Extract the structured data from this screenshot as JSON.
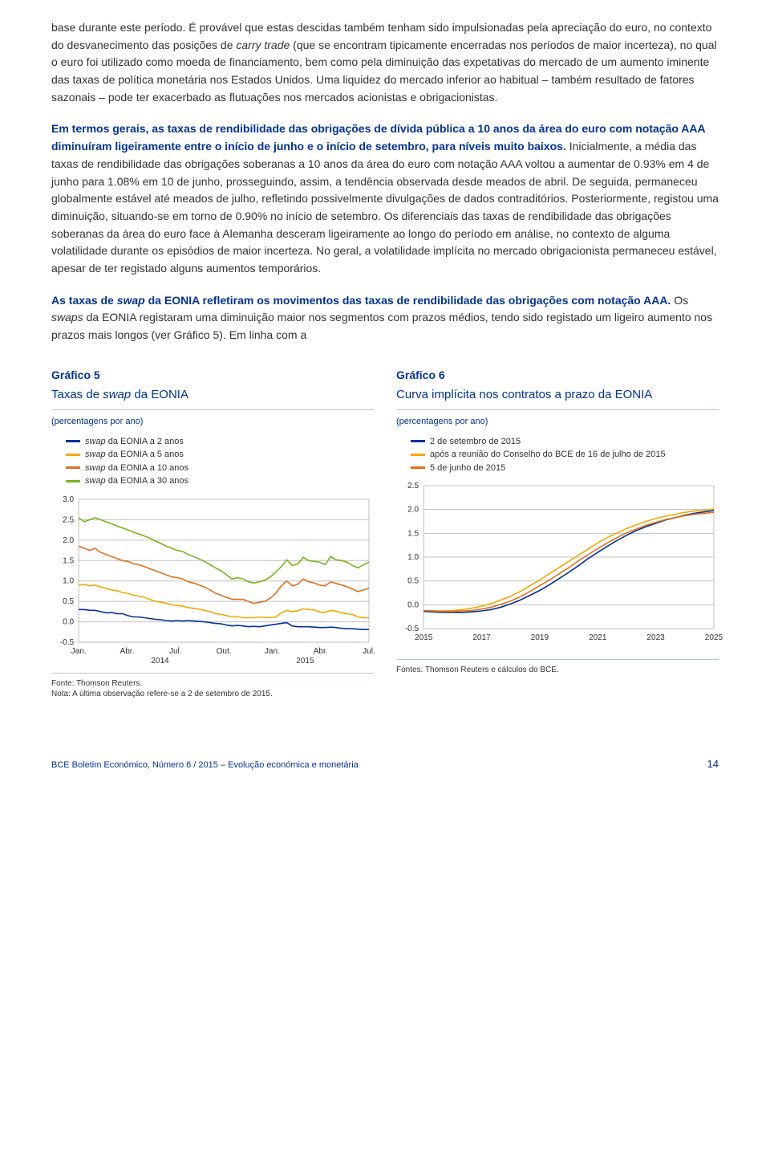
{
  "paragraphs": {
    "p1_plain": "base durante este período. É provável que estas descidas também tenham sido impulsionadas pela apreciação do euro, no contexto do desvanecimento das posições de ",
    "p1_italic": "carry trade",
    "p1_plain2": " (que se encontram tipicamente encerradas nos períodos de maior incerteza), no qual o euro foi utilizado como moeda de financiamento, bem como pela diminuição das expetativas do mercado de um aumento iminente das taxas de política monetária nos Estados Unidos. Uma liquidez do mercado inferior ao habitual – também resultado de fatores sazonais – pode ter exacerbado as flutuações nos mercados acionistas e obrigacionistas.",
    "p2_lead": "Em termos gerais, as taxas de rendibilidade das obrigações de dívida pública a 10 anos da área do euro com notação AAA diminuíram ligeiramente entre o início de junho e o início de setembro, para níveis muito baixos.",
    "p2_rest": " Inicialmente, a média das taxas de rendibilidade das obrigações soberanas a 10 anos da área do euro com notação AAA voltou a aumentar de 0.93% em 4 de junho para 1.08% em 10 de junho, prosseguindo, assim, a tendência observada desde meados de abril. De seguida, permaneceu globalmente estável até meados de julho, refletindo possivelmente divulgações de dados contraditórios. Posteriormente, registou uma diminuição, situando-se em torno de 0.90% no início de setembro. Os diferenciais das taxas de rendibilidade das obrigações soberanas da área do euro face à Alemanha desceram ligeiramente ao longo do período em análise, no contexto de alguma volatilidade durante os episódios de maior incerteza. No geral, a volatilidade implícita no mercado obrigacionista permaneceu estável, apesar de ter registado alguns aumentos temporários.",
    "p3_lead_a": "As taxas de ",
    "p3_lead_i": "swap",
    "p3_lead_b": " da EONIA refletiram os movimentos das taxas de rendibilidade das obrigações com notação AAA.",
    "p3_rest_a": " Os ",
    "p3_rest_i": "swaps",
    "p3_rest_b": " da EONIA registaram uma diminuição maior nos segmentos com prazos médios, tendo sido registado um ligeiro aumento nos prazos mais longos (ver Gráfico 5). Em linha com a"
  },
  "chart5": {
    "label": "Gráfico 5",
    "title_a": "Taxas de ",
    "title_i": "swap",
    "title_b": " da EONIA",
    "sub": "(percentagens por ano)",
    "legend": [
      {
        "color": "#003299",
        "prefix_italic": "swap",
        "text": " da EONIA a 2 anos"
      },
      {
        "color": "#f6a800",
        "prefix_italic": "swap",
        "text": " da EONIA a 5 anos"
      },
      {
        "color": "#e2701e",
        "prefix_italic": "swap",
        "text": " da EONIA a 10 anos"
      },
      {
        "color": "#7ab51d",
        "prefix_italic": "swap",
        "text": " da EONIA a 30 anos"
      }
    ],
    "ylim": [
      -0.5,
      3.0
    ],
    "yticks": [
      -0.5,
      0.0,
      0.5,
      1.0,
      1.5,
      2.0,
      2.5,
      3.0
    ],
    "xticklabels": [
      "Jan.",
      "Abr.",
      "Jul.",
      "Out.",
      "Jan.",
      "Abr.",
      "Jul."
    ],
    "xsublabels": [
      "2014",
      "2015"
    ],
    "background": "#ffffff",
    "grid_color": "#c0c0c0",
    "series": {
      "s2y": {
        "color": "#003299",
        "values": [
          0.3,
          0.3,
          0.28,
          0.28,
          0.25,
          0.22,
          0.23,
          0.2,
          0.2,
          0.15,
          0.12,
          0.12,
          0.1,
          0.08,
          0.06,
          0.05,
          0.03,
          0.02,
          0.03,
          0.02,
          0.03,
          0.02,
          0.01,
          0.0,
          -0.02,
          -0.04,
          -0.05,
          -0.08,
          -0.1,
          -0.09,
          -0.1,
          -0.12,
          -0.11,
          -0.12,
          -0.1,
          -0.08,
          -0.06,
          -0.04,
          -0.02,
          -0.1,
          -0.12,
          -0.12,
          -0.12,
          -0.13,
          -0.14,
          -0.14,
          -0.13,
          -0.14,
          -0.16,
          -0.17,
          -0.17,
          -0.18,
          -0.19,
          -0.19
        ]
      },
      "s5y": {
        "color": "#f6a800",
        "values": [
          0.9,
          0.92,
          0.88,
          0.9,
          0.85,
          0.82,
          0.78,
          0.76,
          0.72,
          0.7,
          0.65,
          0.63,
          0.6,
          0.55,
          0.5,
          0.48,
          0.45,
          0.42,
          0.4,
          0.38,
          0.35,
          0.33,
          0.31,
          0.28,
          0.25,
          0.2,
          0.18,
          0.15,
          0.12,
          0.13,
          0.1,
          0.1,
          0.1,
          0.12,
          0.11,
          0.1,
          0.12,
          0.22,
          0.28,
          0.25,
          0.27,
          0.32,
          0.3,
          0.29,
          0.24,
          0.23,
          0.28,
          0.26,
          0.22,
          0.2,
          0.18,
          0.12,
          0.1,
          0.1
        ]
      },
      "s10y": {
        "color": "#e2701e",
        "values": [
          1.85,
          1.8,
          1.75,
          1.8,
          1.7,
          1.65,
          1.6,
          1.55,
          1.5,
          1.48,
          1.42,
          1.4,
          1.35,
          1.3,
          1.25,
          1.2,
          1.15,
          1.1,
          1.08,
          1.05,
          0.98,
          0.95,
          0.9,
          0.85,
          0.78,
          0.7,
          0.65,
          0.6,
          0.55,
          0.55,
          0.55,
          0.5,
          0.45,
          0.48,
          0.5,
          0.58,
          0.7,
          0.88,
          1.0,
          0.88,
          0.92,
          1.05,
          0.98,
          0.95,
          0.9,
          0.88,
          0.98,
          0.94,
          0.9,
          0.86,
          0.8,
          0.74,
          0.78,
          0.82
        ]
      },
      "s30y": {
        "color": "#7ab51d",
        "values": [
          2.55,
          2.45,
          2.5,
          2.55,
          2.5,
          2.45,
          2.4,
          2.35,
          2.3,
          2.25,
          2.2,
          2.15,
          2.1,
          2.05,
          1.98,
          1.92,
          1.85,
          1.8,
          1.75,
          1.72,
          1.65,
          1.6,
          1.54,
          1.48,
          1.4,
          1.32,
          1.25,
          1.15,
          1.05,
          1.08,
          1.05,
          0.98,
          0.95,
          0.98,
          1.02,
          1.1,
          1.22,
          1.35,
          1.52,
          1.38,
          1.42,
          1.58,
          1.5,
          1.48,
          1.46,
          1.4,
          1.6,
          1.52,
          1.5,
          1.46,
          1.38,
          1.32,
          1.4,
          1.46
        ]
      }
    },
    "foot_a": "Fonte: Thomson Reuters.",
    "foot_b": "Nota: A última observação refere-se a 2 de setembro de 2015."
  },
  "chart6": {
    "label": "Gráfico 6",
    "title": "Curva implícita nos contratos a prazo da EONIA",
    "sub": "(percentagens por ano)",
    "legend": [
      {
        "color": "#003299",
        "text": "2 de setembro de 2015"
      },
      {
        "color": "#f6a800",
        "text": "após a reunião do Conselho do BCE de 16 de julho de 2015"
      },
      {
        "color": "#e2701e",
        "text": "5 de junho de 2015"
      }
    ],
    "ylim": [
      -0.5,
      2.5
    ],
    "yticks": [
      -0.5,
      0.0,
      0.5,
      1.0,
      1.5,
      2.0,
      2.5
    ],
    "xticklabels": [
      "2015",
      "2017",
      "2019",
      "2021",
      "2023",
      "2025"
    ],
    "background": "#ffffff",
    "grid_color": "#c0c0c0",
    "series": {
      "sep2": {
        "color": "#003299",
        "values": [
          -0.14,
          -0.15,
          -0.16,
          -0.16,
          -0.16,
          -0.15,
          -0.13,
          -0.1,
          -0.05,
          0.02,
          0.1,
          0.2,
          0.3,
          0.42,
          0.55,
          0.68,
          0.82,
          0.97,
          1.1,
          1.23,
          1.35,
          1.46,
          1.56,
          1.64,
          1.71,
          1.78,
          1.83,
          1.88,
          1.92,
          1.95,
          1.98
        ]
      },
      "jul16": {
        "color": "#f6a800",
        "values": [
          -0.12,
          -0.13,
          -0.13,
          -0.12,
          -0.1,
          -0.07,
          -0.03,
          0.03,
          0.1,
          0.18,
          0.28,
          0.4,
          0.52,
          0.65,
          0.78,
          0.91,
          1.04,
          1.17,
          1.3,
          1.41,
          1.51,
          1.6,
          1.68,
          1.75,
          1.81,
          1.86,
          1.9,
          1.94,
          1.97,
          1.99,
          2.01
        ]
      },
      "jun5": {
        "color": "#e2701e",
        "values": [
          -0.12,
          -0.13,
          -0.14,
          -0.14,
          -0.13,
          -0.12,
          -0.09,
          -0.05,
          0.01,
          0.08,
          0.17,
          0.28,
          0.4,
          0.52,
          0.65,
          0.78,
          0.92,
          1.05,
          1.18,
          1.3,
          1.41,
          1.51,
          1.59,
          1.67,
          1.73,
          1.79,
          1.83,
          1.87,
          1.9,
          1.92,
          1.94
        ]
      }
    },
    "foot": "Fontes: Thomson Reuters e cálculos do BCE."
  },
  "footer": {
    "line": "BCE Boletim Económico, Número 6 / 2015 – Evolução económica e monetária",
    "page": "14"
  }
}
